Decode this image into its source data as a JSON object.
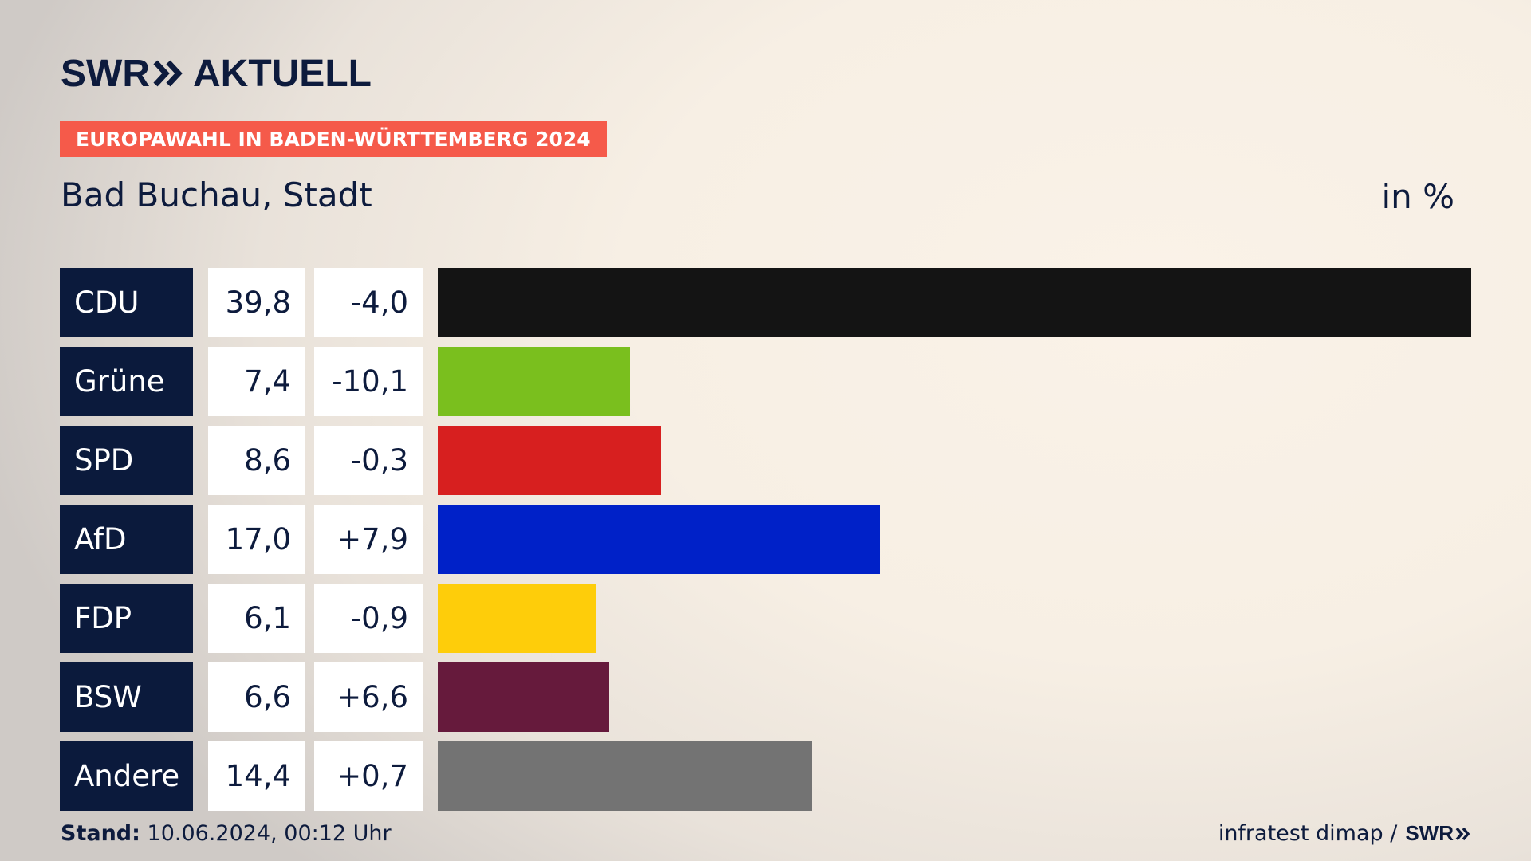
{
  "brand": {
    "name": "SWR",
    "suffix": "AKTUELL"
  },
  "tag": "EUROPAWAHL IN BADEN-WÜRTTEMBERG 2024",
  "subtitle": "Bad Buchau, Stadt",
  "unit": "in %",
  "chart_data": {
    "type": "bar",
    "orientation": "horizontal",
    "title": "Bad Buchau, Stadt",
    "unit": "in %",
    "categories": [
      "CDU",
      "Grüne",
      "SPD",
      "AfD",
      "FDP",
      "BSW",
      "Andere"
    ],
    "values": [
      39.8,
      7.4,
      8.6,
      17.0,
      6.1,
      6.6,
      14.4
    ],
    "values_label": [
      "39,8",
      "7,4",
      "8,6",
      "17,0",
      "6,1",
      "6,6",
      "14,4"
    ],
    "diff_label": [
      "-4,0",
      "-10,1",
      "-0,3",
      "+7,9",
      "-0,9",
      "+6,6",
      "+0,7"
    ],
    "colors": [
      "#141414",
      "#7abf1e",
      "#d71f1f",
      "#0021c8",
      "#fecd0a",
      "#661a3c",
      "#737373"
    ],
    "xlim": [
      0,
      39.8
    ]
  },
  "footer": {
    "stand_label": "Stand:",
    "stand_value": "10.06.2024, 00:12 Uhr",
    "source": "infratest dimap /",
    "source_brand": "SWR"
  }
}
